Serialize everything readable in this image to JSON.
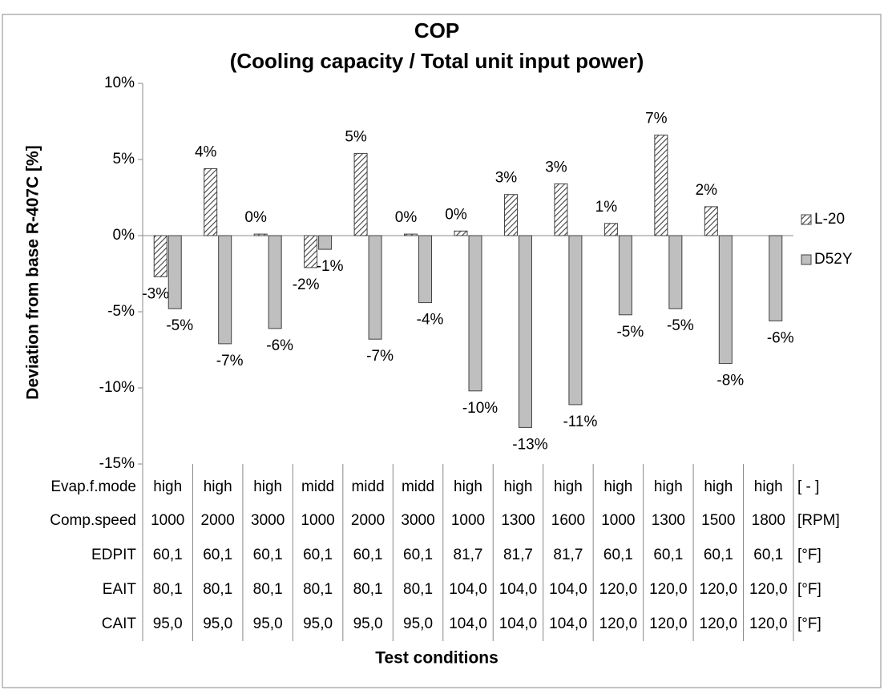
{
  "chart_data": {
    "type": "bar",
    "title": "COP",
    "subtitle": "(Cooling capacity / Total unit input power)",
    "y_label": "Deviation from base R-407C [%]",
    "x_label": "Test conditions",
    "ylim": [
      -15,
      10
    ],
    "yticks": [
      {
        "value": -15,
        "label": "-15%"
      },
      {
        "value": -10,
        "label": "-10%"
      },
      {
        "value": -5,
        "label": "-5%"
      },
      {
        "value": 0,
        "label": "0%"
      },
      {
        "value": 5,
        "label": "5%"
      },
      {
        "value": 10,
        "label": "10%"
      }
    ],
    "legend": "right",
    "series": [
      {
        "name": "L-20",
        "color": "#404040",
        "hatch": true,
        "values": [
          -2.7,
          4.4,
          0.1,
          -2.1,
          5.4,
          0.1,
          0.3,
          2.7,
          3.4,
          0.8,
          6.6,
          1.9,
          null
        ],
        "value_labels": [
          "-3%",
          "4%",
          "0%",
          "-2%",
          "5%",
          "0%",
          "0%",
          "3%",
          "3%",
          "1%",
          "7%",
          "2%",
          null
        ]
      },
      {
        "name": "D52Y",
        "color": "#bfbfbf",
        "hatch": false,
        "values": [
          -4.8,
          -7.1,
          -6.1,
          -0.9,
          -6.8,
          -4.4,
          -10.2,
          -12.6,
          -11.1,
          -5.2,
          -4.8,
          -8.4,
          -5.6
        ],
        "value_labels": [
          "-5%",
          "-7%",
          "-6%",
          "-1%",
          "-7%",
          "-4%",
          "-10%",
          "-13%",
          "-11%",
          "-5%",
          "-5%",
          "-8%",
          "-6%"
        ]
      }
    ],
    "table": [
      {
        "label": "Evap.f.mode",
        "unit": "[ - ]",
        "cells": [
          "high",
          "high",
          "high",
          "midd",
          "midd",
          "midd",
          "high",
          "high",
          "high",
          "high",
          "high",
          "high",
          "high"
        ]
      },
      {
        "label": "Comp.speed",
        "unit": "[RPM]",
        "cells": [
          "1000",
          "2000",
          "3000",
          "1000",
          "2000",
          "3000",
          "1000",
          "1300",
          "1600",
          "1000",
          "1300",
          "1500",
          "1800"
        ]
      },
      {
        "label": "EDPIT",
        "unit": "[°F]",
        "cells": [
          "60,1",
          "60,1",
          "60,1",
          "60,1",
          "60,1",
          "60,1",
          "81,7",
          "81,7",
          "81,7",
          "60,1",
          "60,1",
          "60,1",
          "60,1"
        ]
      },
      {
        "label": "EAIT",
        "unit": "[°F]",
        "cells": [
          "80,1",
          "80,1",
          "80,1",
          "80,1",
          "80,1",
          "80,1",
          "104,0",
          "104,0",
          "104,0",
          "120,0",
          "120,0",
          "120,0",
          "120,0"
        ]
      },
      {
        "label": "CAIT",
        "unit": "[°F]",
        "cells": [
          "95,0",
          "95,0",
          "95,0",
          "95,0",
          "95,0",
          "95,0",
          "104,0",
          "104,0",
          "104,0",
          "120,0",
          "120,0",
          "120,0",
          "120,0"
        ]
      }
    ]
  }
}
